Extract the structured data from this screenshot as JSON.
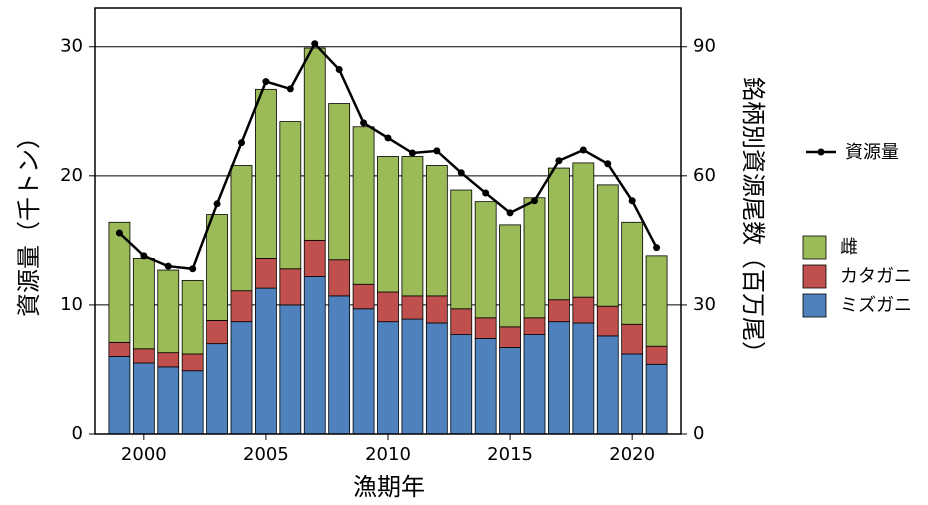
{
  "chart_data": {
    "type": "bar",
    "stacked": true,
    "xlabel": "漁期年",
    "ylabel": "資源量（千トン）",
    "y2label": "銘柄別資源尾数（百万尾）",
    "x": [
      1999,
      2000,
      2001,
      2002,
      2003,
      2004,
      2005,
      2006,
      2007,
      2008,
      2009,
      2010,
      2011,
      2012,
      2013,
      2014,
      2015,
      2016,
      2017,
      2018,
      2019,
      2020,
      2021
    ],
    "xlim": [
      1998,
      2022
    ],
    "xticks": [
      2000,
      2005,
      2010,
      2015,
      2020
    ],
    "ylim": [
      0,
      33
    ],
    "yticks": [
      0,
      10,
      20,
      30
    ],
    "y2lim": [
      0,
      99
    ],
    "y2ticks": [
      0,
      30,
      60,
      90
    ],
    "grid": true,
    "series": [
      {
        "name": "ミズガニ",
        "color": "#4f81bd",
        "values": [
          6.0,
          5.5,
          5.2,
          4.9,
          7.0,
          8.7,
          11.3,
          10.0,
          12.2,
          10.7,
          9.7,
          8.7,
          8.9,
          8.6,
          7.7,
          7.4,
          6.7,
          7.7,
          8.7,
          8.6,
          7.6,
          6.2,
          5.4
        ]
      },
      {
        "name": "カタガニ",
        "color": "#c0504d",
        "values": [
          1.1,
          1.1,
          1.1,
          1.3,
          1.8,
          2.4,
          2.3,
          2.8,
          2.8,
          2.8,
          1.9,
          2.3,
          1.8,
          2.1,
          2.0,
          1.6,
          1.6,
          1.3,
          1.7,
          2.0,
          2.3,
          2.3,
          1.4
        ]
      },
      {
        "name": "雌",
        "color": "#9bbb59",
        "values": [
          9.3,
          7.0,
          6.4,
          5.7,
          8.2,
          9.7,
          13.1,
          11.4,
          14.9,
          12.1,
          12.2,
          10.5,
          10.8,
          10.1,
          9.2,
          9.0,
          7.9,
          9.3,
          10.2,
          10.4,
          9.4,
          7.9,
          7.0
        ]
      },
      {
        "name": "資源量",
        "type": "line",
        "axis": "y2",
        "color": "#000000",
        "values": [
          46.7,
          41.4,
          39,
          38.4,
          53.5,
          67.7,
          81.9,
          80.2,
          90.7,
          84.7,
          72.3,
          68.8,
          65.3,
          65.8,
          60.7,
          56,
          51.4,
          54.2,
          63.5,
          66,
          62.8,
          54.2,
          43.3
        ]
      }
    ]
  }
}
